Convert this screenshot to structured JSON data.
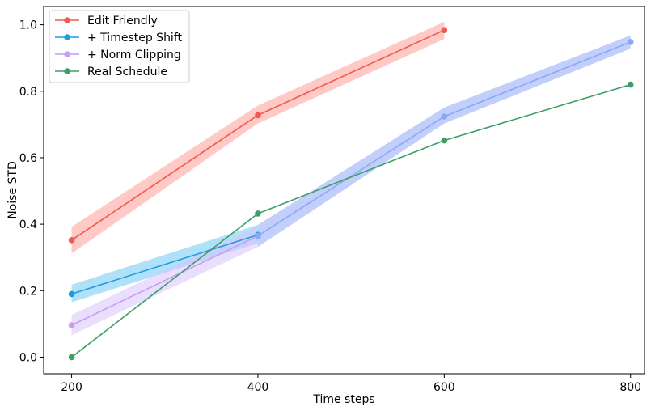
{
  "chart_data": {
    "type": "line",
    "title": "",
    "xlabel": "Time steps",
    "ylabel": "Noise STD",
    "xlim": [
      170,
      815
    ],
    "ylim": [
      -0.05,
      1.055
    ],
    "xticks": [
      200,
      400,
      600,
      800
    ],
    "yticks": [
      0.0,
      0.2,
      0.4,
      0.6,
      0.8,
      1.0
    ],
    "xtick_labels": [
      "200",
      "400",
      "600",
      "800"
    ],
    "ytick_labels": [
      "0.0",
      "0.2",
      "0.4",
      "0.6",
      "0.8",
      "1.0"
    ],
    "grid": false,
    "legend_position": "top-left",
    "series": [
      {
        "name": "Edit Friendly",
        "color": "#f05a4f",
        "band_color": "#ff9c96",
        "x": [
          200,
          400,
          600
        ],
        "y": [
          0.352,
          0.728,
          0.984
        ],
        "lower": [
          0.312,
          0.703,
          0.957
        ],
        "upper": [
          0.392,
          0.757,
          1.009
        ]
      },
      {
        "name": "+ Timestep Shift",
        "color": "#1f9ce0",
        "band_color": "#6ecbf2",
        "x": [
          200,
          400
        ],
        "y": [
          0.19,
          0.368
        ],
        "lower": [
          0.165,
          0.343
        ],
        "upper": [
          0.218,
          0.398
        ]
      },
      {
        "name": "+ Norm Clipping",
        "color": "#c99cf5",
        "band_color": "#d8c3fb",
        "x": [
          200,
          400
        ],
        "y": [
          0.096,
          0.365
        ],
        "lower": [
          0.066,
          0.332
        ],
        "upper": [
          0.127,
          0.395
        ]
      },
      {
        "name": "+ Norm Clipping (continued)",
        "color": "#8ca8f5",
        "band_color": "#8fa8f8",
        "x": [
          400,
          600,
          800
        ],
        "y": [
          0.365,
          0.724,
          0.948
        ],
        "lower": [
          0.332,
          0.703,
          0.928
        ],
        "upper": [
          0.398,
          0.751,
          0.968
        ]
      },
      {
        "name": "Real Schedule",
        "color": "#3f9e67",
        "x": [
          200,
          400,
          600,
          800
        ],
        "y": [
          0.0,
          0.432,
          0.652,
          0.82
        ]
      }
    ],
    "legend": [
      {
        "label": "Edit Friendly",
        "color": "#f05a4f"
      },
      {
        "label": "+ Timestep Shift",
        "color": "#1f9ce0"
      },
      {
        "label": "+ Norm Clipping",
        "color": "#c99cf5"
      },
      {
        "label": "Real Schedule",
        "color": "#3f9e67"
      }
    ]
  }
}
